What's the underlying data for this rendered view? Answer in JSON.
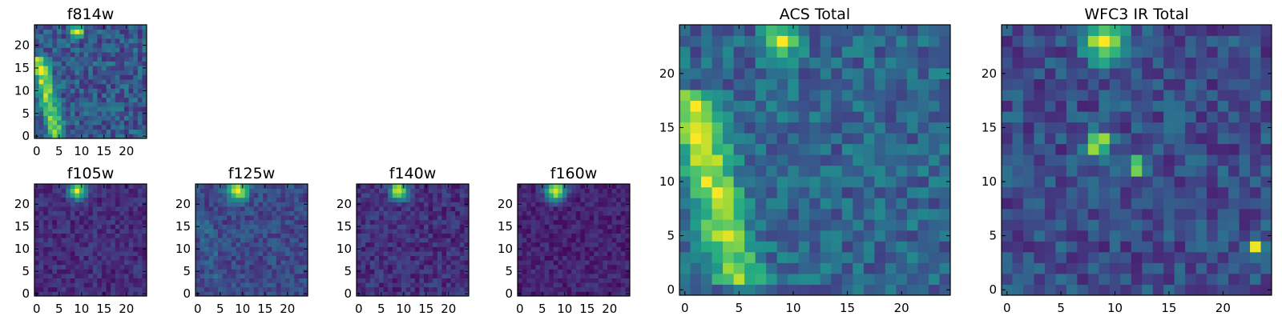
{
  "chart_data": [
    {
      "type": "heatmap",
      "title": "f814w",
      "xlabel": "",
      "ylabel": "",
      "xlim": [
        -0.5,
        24.5
      ],
      "ylim": [
        -0.5,
        24.5
      ],
      "xticks": [
        0,
        5,
        10,
        15,
        20
      ],
      "yticks": [
        0,
        5,
        10,
        15,
        20
      ],
      "colormap": "viridis",
      "features": {
        "background": 0.28,
        "noise": 0.16,
        "spots": [
          {
            "x": 9,
            "y": 23,
            "r": 0.9,
            "v": 0.75
          }
        ],
        "arcs": [
          {
            "x0": 0.4,
            "y0": 17,
            "x1": 4.5,
            "y1": 0,
            "w": 1.3,
            "v": 0.6
          }
        ]
      }
    },
    {
      "type": "heatmap",
      "title": "f105w",
      "xlabel": "",
      "ylabel": "",
      "xlim": [
        -0.5,
        24.5
      ],
      "ylim": [
        -0.5,
        24.5
      ],
      "xticks": [
        0,
        5,
        10,
        15,
        20
      ],
      "yticks": [
        0,
        5,
        10,
        15,
        20
      ],
      "colormap": "viridis",
      "features": {
        "background": 0.13,
        "noise": 0.09,
        "spots": [
          {
            "x": 9,
            "y": 23,
            "r": 1.3,
            "v": 0.85
          }
        ],
        "arcs": []
      }
    },
    {
      "type": "heatmap",
      "title": "f125w",
      "xlabel": "",
      "ylabel": "",
      "xlim": [
        -0.5,
        24.5
      ],
      "ylim": [
        -0.5,
        24.5
      ],
      "xticks": [
        0,
        5,
        10,
        15,
        20
      ],
      "yticks": [
        0,
        5,
        10,
        15,
        20
      ],
      "colormap": "viridis",
      "features": {
        "background": 0.22,
        "noise": 0.11,
        "spots": [
          {
            "x": 9,
            "y": 23,
            "r": 1.6,
            "v": 0.78
          }
        ],
        "arcs": [
          {
            "x0": 1,
            "y0": 18,
            "x1": 5,
            "y1": 0,
            "w": 1.5,
            "v": 0.08
          }
        ]
      }
    },
    {
      "type": "heatmap",
      "title": "f140w",
      "xlabel": "",
      "ylabel": "",
      "xlim": [
        -0.5,
        24.5
      ],
      "ylim": [
        -0.5,
        24.5
      ],
      "xticks": [
        0,
        5,
        10,
        15,
        20
      ],
      "yticks": [
        0,
        5,
        10,
        15,
        20
      ],
      "colormap": "viridis",
      "features": {
        "background": 0.14,
        "noise": 0.1,
        "spots": [
          {
            "x": 9,
            "y": 23,
            "r": 1.4,
            "v": 0.84
          }
        ],
        "arcs": []
      }
    },
    {
      "type": "heatmap",
      "title": "f160w",
      "xlabel": "",
      "ylabel": "",
      "xlim": [
        -0.5,
        24.5
      ],
      "ylim": [
        -0.5,
        24.5
      ],
      "xticks": [
        0,
        5,
        10,
        15,
        20
      ],
      "yticks": [
        0,
        5,
        10,
        15,
        20
      ],
      "colormap": "viridis",
      "features": {
        "background": 0.1,
        "noise": 0.08,
        "spots": [
          {
            "x": 8,
            "y": 23,
            "r": 1.5,
            "v": 0.9
          }
        ],
        "arcs": []
      }
    },
    {
      "type": "heatmap",
      "title": "ACS Total",
      "xlabel": "",
      "ylabel": "",
      "xlim": [
        -0.5,
        24.5
      ],
      "ylim": [
        -0.5,
        24.5
      ],
      "xticks": [
        0,
        5,
        10,
        15,
        20
      ],
      "yticks": [
        0,
        5,
        10,
        15,
        20
      ],
      "colormap": "viridis",
      "features": {
        "background": 0.33,
        "noise": 0.15,
        "spots": [
          {
            "x": 9,
            "y": 23,
            "r": 1.0,
            "v": 0.7
          }
        ],
        "arcs": [
          {
            "x0": 0.3,
            "y0": 18,
            "x1": 5,
            "y1": 1,
            "w": 1.6,
            "v": 0.6
          }
        ]
      }
    },
    {
      "type": "heatmap",
      "title": "WFC3 IR Total",
      "xlabel": "",
      "ylabel": "",
      "xlim": [
        -0.5,
        24.5
      ],
      "ylim": [
        -0.5,
        24.5
      ],
      "xticks": [
        0,
        5,
        10,
        15,
        20
      ],
      "yticks": [
        0,
        5,
        10,
        15,
        20
      ],
      "colormap": "viridis",
      "features": {
        "background": 0.24,
        "noise": 0.14,
        "spots": [
          {
            "x": 9,
            "y": 23,
            "r": 1.3,
            "v": 0.72
          },
          {
            "x": 8.5,
            "y": 13.5,
            "r": 0.8,
            "v": 0.72
          },
          {
            "x": 12,
            "y": 11.5,
            "r": 0.55,
            "v": 0.66
          },
          {
            "x": 23,
            "y": 4,
            "r": 0.4,
            "v": 0.72
          }
        ],
        "arcs": []
      }
    }
  ]
}
